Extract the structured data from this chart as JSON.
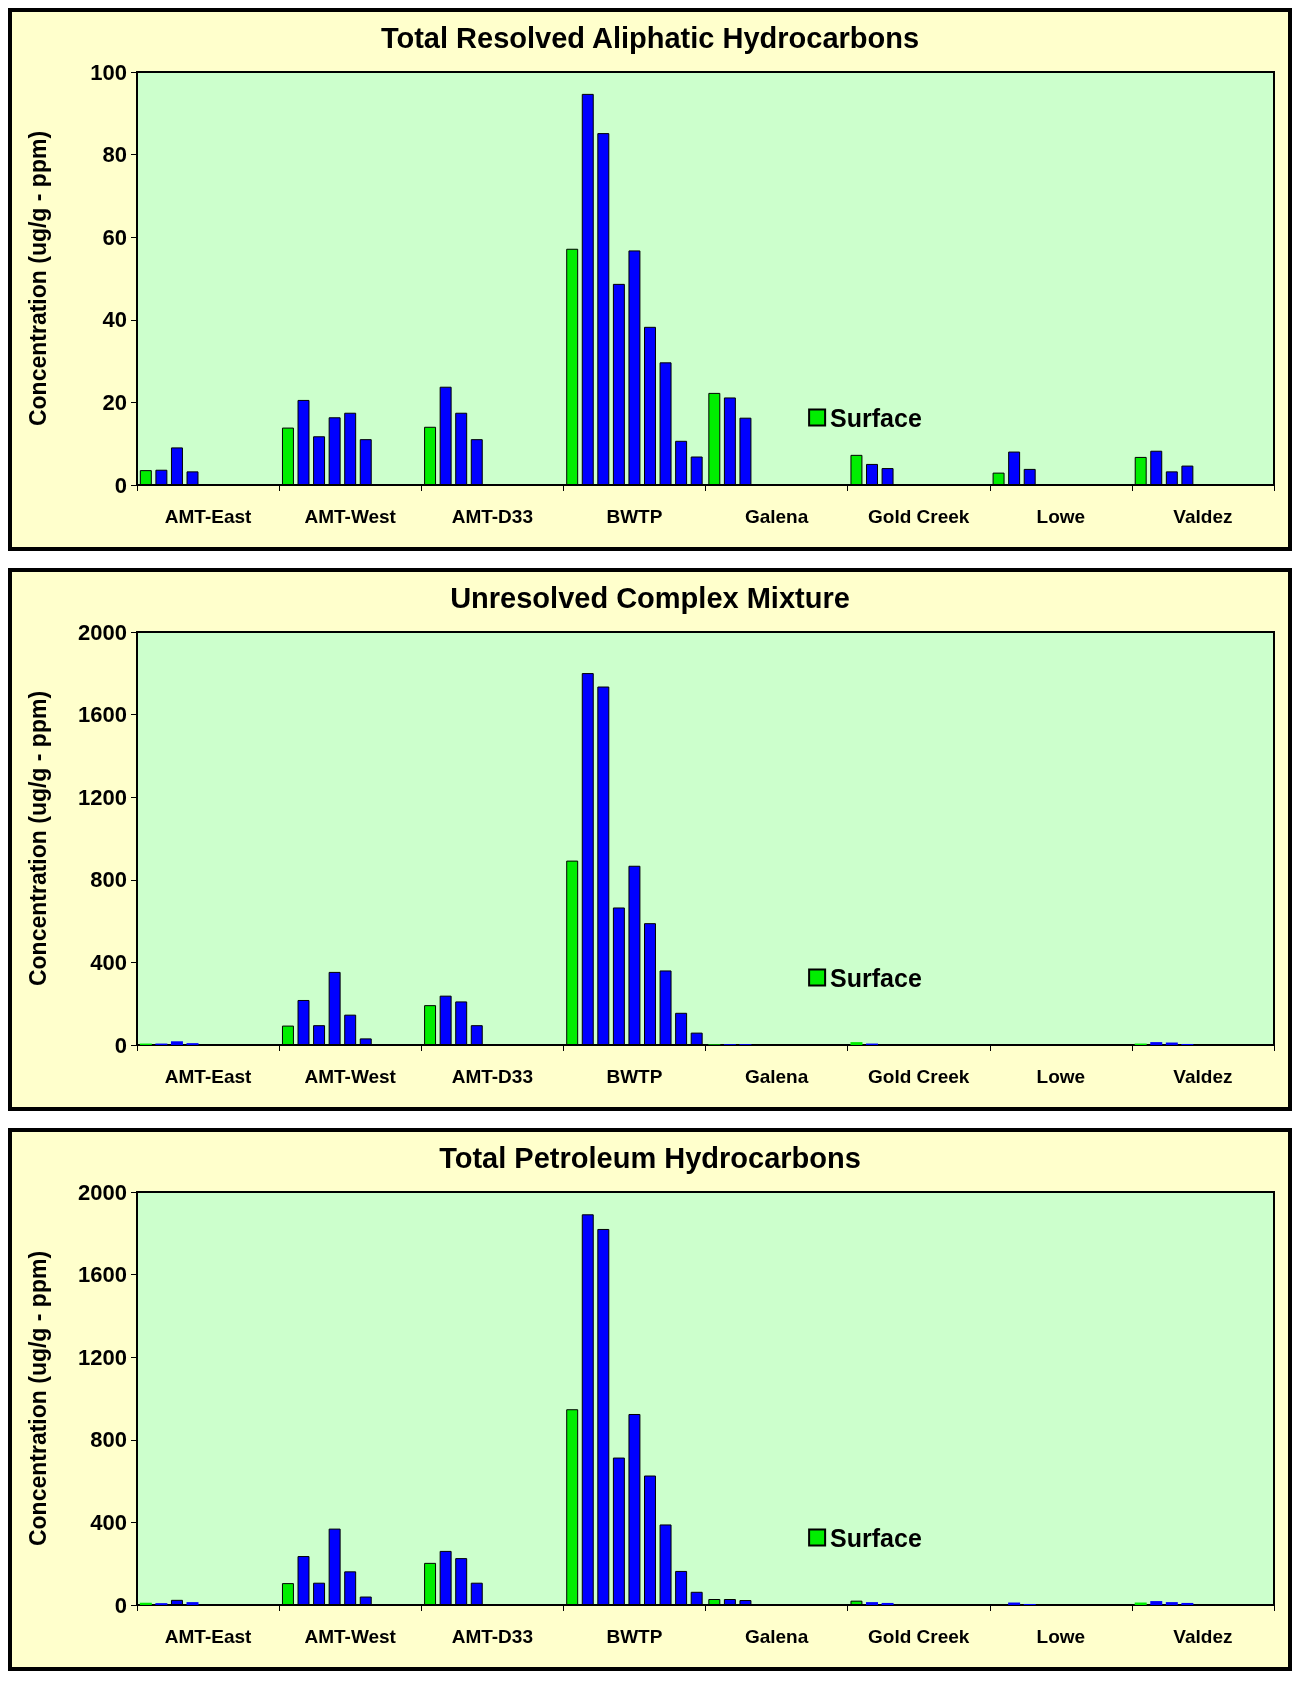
{
  "chart_data": [
    {
      "type": "bar",
      "title": "Total Resolved Aliphatic Hydrocarbons",
      "ylabel": "Concentration (ug/g - ppm)",
      "categories": [
        "AMT-East",
        "AMT-West",
        "AMT-D33",
        "BWTP",
        "Galena",
        "Gold Creek",
        "Lowe",
        "Valdez"
      ],
      "ylim": [
        0,
        100
      ],
      "yticks": [
        0,
        20,
        40,
        60,
        80,
        100
      ],
      "grid": false,
      "legend": "bottom right",
      "series": [
        {
          "name": "Surface",
          "color": "#00ee00",
          "values": [
            3.6,
            13.9,
            14.1,
            57.2,
            22.3,
            7.3,
            3.0,
            6.8
          ]
        },
        {
          "color": "#0000ff",
          "values": [
            3.7,
            20.6,
            23.8,
            94.7,
            21.2,
            5.1,
            8.1,
            8.3
          ]
        },
        {
          "color": "#0000ff",
          "values": [
            9.1,
            11.8,
            17.5,
            85.2,
            16.3,
            4.1,
            3.9,
            3.3
          ]
        },
        {
          "color": "#0000ff",
          "values": [
            3.3,
            16.4,
            11.1,
            48.7,
            null,
            null,
            null,
            4.7
          ]
        },
        {
          "color": "#0000ff",
          "values": [
            null,
            17.5,
            null,
            56.8,
            null,
            null,
            null,
            null
          ]
        },
        {
          "color": "#0000ff",
          "values": [
            null,
            11.1,
            null,
            38.3,
            null,
            null,
            null,
            null
          ]
        },
        {
          "color": "#0000ff",
          "values": [
            null,
            null,
            null,
            29.7,
            null,
            null,
            null,
            null
          ]
        },
        {
          "color": "#0000ff",
          "values": [
            null,
            null,
            null,
            10.7,
            null,
            null,
            null,
            null
          ]
        },
        {
          "color": "#0000ff",
          "values": [
            null,
            null,
            null,
            6.9,
            null,
            null,
            null,
            null
          ]
        }
      ]
    },
    {
      "type": "bar",
      "title": "Unresolved Complex Mixture",
      "ylabel": "Concentration (ug/g - ppm)",
      "categories": [
        "AMT-East",
        "AMT-West",
        "AMT-D33",
        "BWTP",
        "Galena",
        "Gold Creek",
        "Lowe",
        "Valdez"
      ],
      "ylim": [
        0,
        2000
      ],
      "yticks": [
        0,
        400,
        800,
        1200,
        1600,
        2000
      ],
      "grid": false,
      "legend": "bottom right",
      "series": [
        {
          "name": "Surface",
          "color": "#00ee00",
          "values": [
            7,
            94,
            193,
            893,
            3,
            14,
            null,
            7
          ]
        },
        {
          "color": "#0000ff",
          "values": [
            7,
            218,
            239,
            1801,
            4,
            7,
            null,
            14
          ]
        },
        {
          "color": "#0000ff",
          "values": [
            18,
            96,
            211,
            1736,
            4,
            null,
            null,
            12
          ]
        },
        {
          "color": "#0000ff",
          "values": [
            9,
            354,
            96,
            666,
            null,
            null,
            null,
            5
          ]
        },
        {
          "color": "#0000ff",
          "values": [
            null,
            147,
            null,
            868,
            null,
            null,
            null,
            null
          ]
        },
        {
          "color": "#0000ff",
          "values": [
            null,
            32,
            null,
            590,
            null,
            null,
            null,
            null
          ]
        },
        {
          "color": "#0000ff",
          "values": [
            null,
            null,
            null,
            361,
            null,
            null,
            null,
            null
          ]
        },
        {
          "color": "#0000ff",
          "values": [
            null,
            null,
            null,
            156,
            null,
            null,
            null,
            null
          ]
        },
        {
          "color": "#0000ff",
          "values": [
            null,
            null,
            null,
            60,
            null,
            null,
            null,
            null
          ]
        }
      ]
    },
    {
      "type": "bar",
      "title": "Total Petroleum Hydrocarbons",
      "ylabel": "Concentration (ug/g - ppm)",
      "categories": [
        "AMT-East",
        "AMT-West",
        "AMT-D33",
        "BWTP",
        "Galena",
        "Gold Creek",
        "Lowe",
        "Valdez"
      ],
      "ylim": [
        0,
        2000
      ],
      "yticks": [
        0,
        400,
        800,
        1200,
        1600,
        2000
      ],
      "grid": false,
      "legend": "bottom right",
      "series": [
        {
          "name": "Surface",
          "color": "#00ee00",
          "values": [
            11,
            106,
            204,
            948,
            29,
            21,
            null,
            12
          ]
        },
        {
          "color": "#0000ff",
          "values": [
            9,
            237,
            262,
            1892,
            29,
            14,
            12,
            19
          ]
        },
        {
          "color": "#0000ff",
          "values": [
            25,
            108,
            227,
            1821,
            24,
            10,
            5,
            14
          ]
        },
        {
          "color": "#0000ff",
          "values": [
            14,
            370,
            108,
            714,
            null,
            null,
            null,
            10
          ]
        },
        {
          "color": "#0000ff",
          "values": [
            null,
            163,
            null,
            925,
            null,
            null,
            null,
            null
          ]
        },
        {
          "color": "#0000ff",
          "values": [
            null,
            41,
            null,
            627,
            null,
            null,
            null,
            null
          ]
        },
        {
          "color": "#0000ff",
          "values": [
            null,
            null,
            null,
            390,
            null,
            null,
            null,
            null
          ]
        },
        {
          "color": "#0000ff",
          "values": [
            null,
            null,
            null,
            165,
            null,
            null,
            null,
            null
          ]
        },
        {
          "color": "#0000ff",
          "values": [
            null,
            null,
            null,
            64,
            null,
            null,
            null,
            null
          ]
        }
      ]
    }
  ]
}
